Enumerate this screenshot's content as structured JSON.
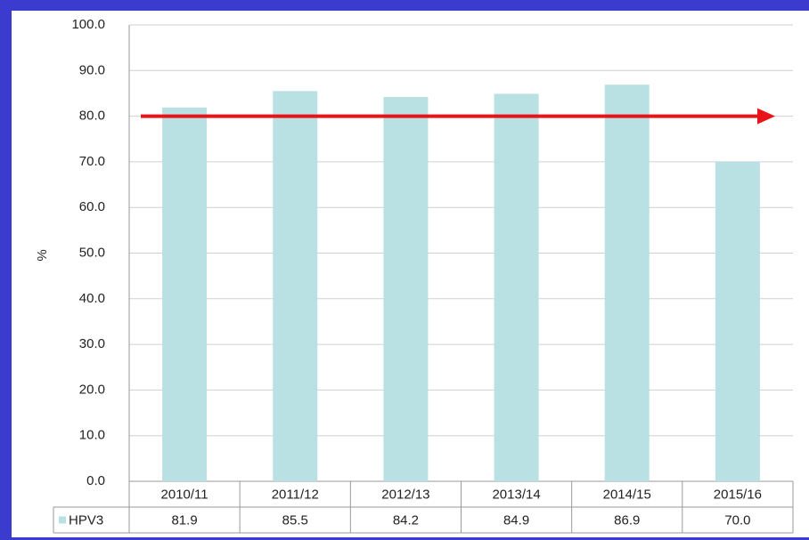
{
  "chart_data": {
    "type": "bar",
    "ylabel": "%",
    "categories": [
      "2010/11",
      "2011/12",
      "2012/13",
      "2013/14",
      "2014/15",
      "2015/16"
    ],
    "series": [
      {
        "name": "HPV3",
        "color": "#b9e0e3",
        "values": [
          81.9,
          85.5,
          84.2,
          84.9,
          86.9,
          70.0
        ],
        "value_labels": [
          "81.9",
          "85.5",
          "84.2",
          "84.9",
          "86.9",
          "70.0"
        ]
      }
    ],
    "ylim": [
      0,
      100
    ],
    "yticks": [
      {
        "value": 0,
        "label": "0.0"
      },
      {
        "value": 10,
        "label": "10.0"
      },
      {
        "value": 20,
        "label": "20.0"
      },
      {
        "value": 30,
        "label": "30.0"
      },
      {
        "value": 40,
        "label": "40.0"
      },
      {
        "value": 50,
        "label": "50.0"
      },
      {
        "value": 60,
        "label": "60.0"
      },
      {
        "value": 70,
        "label": "70.0"
      },
      {
        "value": 80,
        "label": "80.0"
      },
      {
        "value": 90,
        "label": "90.0"
      },
      {
        "value": 100,
        "label": "100.0"
      }
    ],
    "grid": true,
    "reference_line": {
      "value": 80,
      "color": "#e8141a"
    }
  }
}
